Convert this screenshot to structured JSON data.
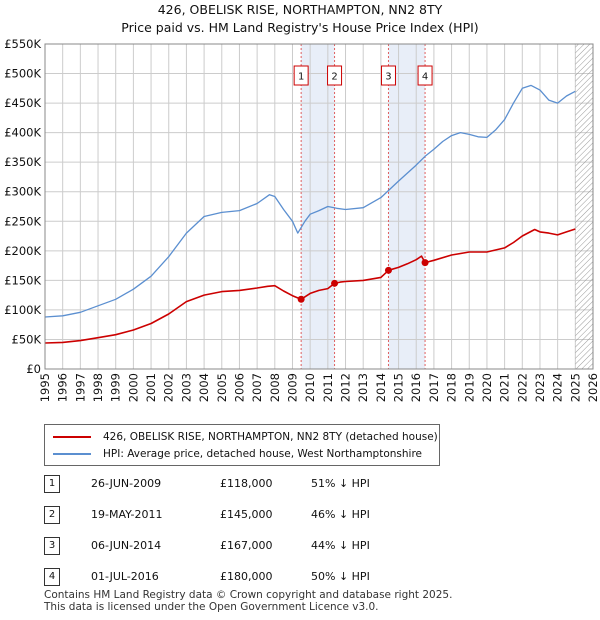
{
  "title_line1": "426, OBELISK RISE, NORTHAMPTON, NN2 8TY",
  "title_line2": "Price paid vs. HM Land Registry's House Price Index (HPI)",
  "colors": {
    "property": "#cc0000",
    "hpi": "#5b8fd0",
    "band": "#e8eef8",
    "vline": "#e06060",
    "grid": "#cccccc"
  },
  "chart_data": {
    "type": "line",
    "xlim": [
      1995,
      2026
    ],
    "ylim": [
      0,
      550000
    ],
    "x_ticks": [
      "1995",
      "1996",
      "1997",
      "1998",
      "1999",
      "2000",
      "2001",
      "2002",
      "2003",
      "2004",
      "2005",
      "2006",
      "2007",
      "2008",
      "2009",
      "2010",
      "2011",
      "2012",
      "2013",
      "2014",
      "2015",
      "2016",
      "2017",
      "2018",
      "2019",
      "2020",
      "2021",
      "2022",
      "2023",
      "2024",
      "2025",
      "2026"
    ],
    "y_ticks": [
      {
        "value": 0,
        "label": "£0"
      },
      {
        "value": 50000,
        "label": "£50K"
      },
      {
        "value": 100000,
        "label": "£100K"
      },
      {
        "value": 150000,
        "label": "£150K"
      },
      {
        "value": 200000,
        "label": "£200K"
      },
      {
        "value": 250000,
        "label": "£250K"
      },
      {
        "value": 300000,
        "label": "£300K"
      },
      {
        "value": 350000,
        "label": "£350K"
      },
      {
        "value": 400000,
        "label": "£400K"
      },
      {
        "value": 450000,
        "label": "£450K"
      },
      {
        "value": 500000,
        "label": "£500K"
      },
      {
        "value": 550000,
        "label": "£550K"
      }
    ],
    "hatch_from": 2025.0,
    "shaded_bands": [
      [
        2009.49,
        2011.38
      ],
      [
        2014.43,
        2016.5
      ]
    ],
    "series": [
      {
        "name": "426, OBELISK RISE, NORTHAMPTON, NN2 8TY (detached house)",
        "x": [
          1995.0,
          1996.0,
          1997.0,
          1998.0,
          1999.0,
          2000.0,
          2001.0,
          2002.0,
          2003.0,
          2004.0,
          2005.0,
          2006.0,
          2007.0,
          2007.6,
          2008.0,
          2008.5,
          2009.0,
          2009.49,
          2010.0,
          2010.5,
          2011.0,
          2011.38,
          2011.7,
          2012.0,
          2013.0,
          2014.0,
          2014.43,
          2015.0,
          2015.5,
          2016.0,
          2016.3,
          2016.5,
          2017.0,
          2018.0,
          2019.0,
          2020.0,
          2021.0,
          2021.5,
          2022.0,
          2022.7,
          2023.0,
          2023.5,
          2024.0,
          2024.5,
          2025.0
        ],
        "values": [
          44000,
          45000,
          48000,
          53000,
          58000,
          66000,
          77000,
          93000,
          114000,
          125000,
          131000,
          133000,
          137000,
          140000,
          141000,
          132000,
          124000,
          118000,
          128000,
          133000,
          136000,
          145000,
          147000,
          148000,
          150000,
          155000,
          167000,
          172000,
          178000,
          185000,
          191000,
          180000,
          184000,
          193000,
          198000,
          198000,
          205000,
          214000,
          225000,
          236000,
          232000,
          230000,
          227000,
          232000,
          237000
        ]
      },
      {
        "name": "HPI: Average price, detached house, West Northamptonshire",
        "x": [
          1995.0,
          1996.0,
          1997.0,
          1998.0,
          1999.0,
          2000.0,
          2001.0,
          2002.0,
          2003.0,
          2004.0,
          2005.0,
          2006.0,
          2007.0,
          2007.7,
          2008.0,
          2008.5,
          2009.0,
          2009.3,
          2009.7,
          2010.0,
          2010.5,
          2011.0,
          2011.5,
          2012.0,
          2013.0,
          2014.0,
          2015.0,
          2016.0,
          2016.5,
          2017.0,
          2017.5,
          2018.0,
          2018.5,
          2019.0,
          2019.5,
          2020.0,
          2020.5,
          2021.0,
          2021.5,
          2022.0,
          2022.5,
          2023.0,
          2023.5,
          2024.0,
          2024.5,
          2025.0
        ],
        "values": [
          88000,
          90000,
          96000,
          107000,
          118000,
          135000,
          157000,
          190000,
          230000,
          258000,
          265000,
          268000,
          280000,
          295000,
          292000,
          270000,
          250000,
          230000,
          250000,
          262000,
          268000,
          275000,
          272000,
          270000,
          273000,
          290000,
          318000,
          345000,
          360000,
          372000,
          385000,
          395000,
          400000,
          397000,
          393000,
          392000,
          405000,
          422000,
          450000,
          475000,
          480000,
          472000,
          455000,
          450000,
          462000,
          470000
        ]
      }
    ],
    "markers": [
      {
        "label": "1",
        "x": 2009.49,
        "y": 118000
      },
      {
        "label": "2",
        "x": 2011.38,
        "y": 145000
      },
      {
        "label": "3",
        "x": 2014.43,
        "y": 167000
      },
      {
        "label": "4",
        "x": 2016.5,
        "y": 180000
      }
    ]
  },
  "legend": {
    "property_label": "426, OBELISK RISE, NORTHAMPTON, NN2 8TY (detached house)",
    "hpi_label": "HPI: Average price, detached house, West Northamptonshire"
  },
  "sales": [
    {
      "num": "1",
      "date": "26-JUN-2009",
      "price": "£118,000",
      "hpi": "51% ↓ HPI"
    },
    {
      "num": "2",
      "date": "19-MAY-2011",
      "price": "£145,000",
      "hpi": "46% ↓ HPI"
    },
    {
      "num": "3",
      "date": "06-JUN-2014",
      "price": "£167,000",
      "hpi": "44% ↓ HPI"
    },
    {
      "num": "4",
      "date": "01-JUL-2016",
      "price": "£180,000",
      "hpi": "50% ↓ HPI"
    }
  ],
  "footer_line1": "Contains HM Land Registry data © Crown copyright and database right 2025.",
  "footer_line2": "This data is licensed under the Open Government Licence v3.0."
}
